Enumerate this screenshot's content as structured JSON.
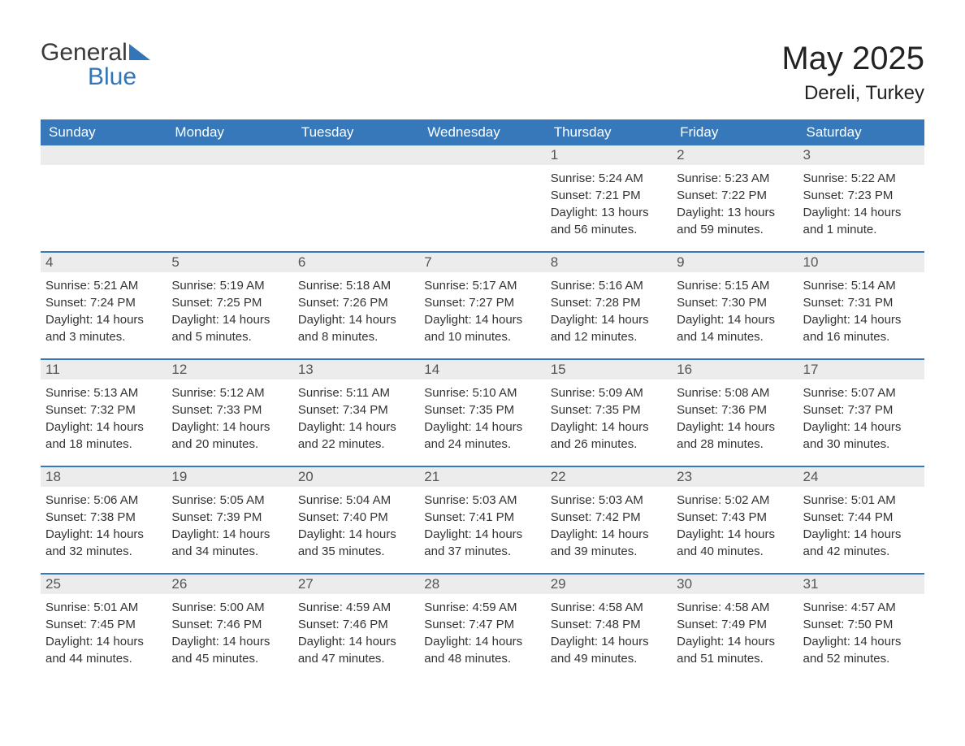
{
  "logo": {
    "text_general": "General",
    "text_blue": "Blue",
    "triangle_color": "#3376b8"
  },
  "header": {
    "month_title": "May 2025",
    "location": "Dereli, Turkey"
  },
  "styling": {
    "header_bg": "#3678b9",
    "header_text": "#ffffff",
    "row_border": "#3678b9",
    "daynum_bg": "#ececec",
    "daynum_text": "#555555",
    "body_text": "#333333",
    "page_bg": "#ffffff",
    "month_title_fontsize": 40,
    "location_fontsize": 24,
    "weekday_fontsize": 17,
    "cell_fontsize": 15
  },
  "labels": {
    "sunrise": "Sunrise:",
    "sunset": "Sunset:",
    "daylight": "Daylight:"
  },
  "weekdays": [
    "Sunday",
    "Monday",
    "Tuesday",
    "Wednesday",
    "Thursday",
    "Friday",
    "Saturday"
  ],
  "weeks": [
    [
      {
        "empty": true
      },
      {
        "empty": true
      },
      {
        "empty": true
      },
      {
        "empty": true
      },
      {
        "day": "1",
        "sunrise": "5:24 AM",
        "sunset": "7:21 PM",
        "daylight": "13 hours and 56 minutes."
      },
      {
        "day": "2",
        "sunrise": "5:23 AM",
        "sunset": "7:22 PM",
        "daylight": "13 hours and 59 minutes."
      },
      {
        "day": "3",
        "sunrise": "5:22 AM",
        "sunset": "7:23 PM",
        "daylight": "14 hours and 1 minute."
      }
    ],
    [
      {
        "day": "4",
        "sunrise": "5:21 AM",
        "sunset": "7:24 PM",
        "daylight": "14 hours and 3 minutes."
      },
      {
        "day": "5",
        "sunrise": "5:19 AM",
        "sunset": "7:25 PM",
        "daylight": "14 hours and 5 minutes."
      },
      {
        "day": "6",
        "sunrise": "5:18 AM",
        "sunset": "7:26 PM",
        "daylight": "14 hours and 8 minutes."
      },
      {
        "day": "7",
        "sunrise": "5:17 AM",
        "sunset": "7:27 PM",
        "daylight": "14 hours and 10 minutes."
      },
      {
        "day": "8",
        "sunrise": "5:16 AM",
        "sunset": "7:28 PM",
        "daylight": "14 hours and 12 minutes."
      },
      {
        "day": "9",
        "sunrise": "5:15 AM",
        "sunset": "7:30 PM",
        "daylight": "14 hours and 14 minutes."
      },
      {
        "day": "10",
        "sunrise": "5:14 AM",
        "sunset": "7:31 PM",
        "daylight": "14 hours and 16 minutes."
      }
    ],
    [
      {
        "day": "11",
        "sunrise": "5:13 AM",
        "sunset": "7:32 PM",
        "daylight": "14 hours and 18 minutes."
      },
      {
        "day": "12",
        "sunrise": "5:12 AM",
        "sunset": "7:33 PM",
        "daylight": "14 hours and 20 minutes."
      },
      {
        "day": "13",
        "sunrise": "5:11 AM",
        "sunset": "7:34 PM",
        "daylight": "14 hours and 22 minutes."
      },
      {
        "day": "14",
        "sunrise": "5:10 AM",
        "sunset": "7:35 PM",
        "daylight": "14 hours and 24 minutes."
      },
      {
        "day": "15",
        "sunrise": "5:09 AM",
        "sunset": "7:35 PM",
        "daylight": "14 hours and 26 minutes."
      },
      {
        "day": "16",
        "sunrise": "5:08 AM",
        "sunset": "7:36 PM",
        "daylight": "14 hours and 28 minutes."
      },
      {
        "day": "17",
        "sunrise": "5:07 AM",
        "sunset": "7:37 PM",
        "daylight": "14 hours and 30 minutes."
      }
    ],
    [
      {
        "day": "18",
        "sunrise": "5:06 AM",
        "sunset": "7:38 PM",
        "daylight": "14 hours and 32 minutes."
      },
      {
        "day": "19",
        "sunrise": "5:05 AM",
        "sunset": "7:39 PM",
        "daylight": "14 hours and 34 minutes."
      },
      {
        "day": "20",
        "sunrise": "5:04 AM",
        "sunset": "7:40 PM",
        "daylight": "14 hours and 35 minutes."
      },
      {
        "day": "21",
        "sunrise": "5:03 AM",
        "sunset": "7:41 PM",
        "daylight": "14 hours and 37 minutes."
      },
      {
        "day": "22",
        "sunrise": "5:03 AM",
        "sunset": "7:42 PM",
        "daylight": "14 hours and 39 minutes."
      },
      {
        "day": "23",
        "sunrise": "5:02 AM",
        "sunset": "7:43 PM",
        "daylight": "14 hours and 40 minutes."
      },
      {
        "day": "24",
        "sunrise": "5:01 AM",
        "sunset": "7:44 PM",
        "daylight": "14 hours and 42 minutes."
      }
    ],
    [
      {
        "day": "25",
        "sunrise": "5:01 AM",
        "sunset": "7:45 PM",
        "daylight": "14 hours and 44 minutes."
      },
      {
        "day": "26",
        "sunrise": "5:00 AM",
        "sunset": "7:46 PM",
        "daylight": "14 hours and 45 minutes."
      },
      {
        "day": "27",
        "sunrise": "4:59 AM",
        "sunset": "7:46 PM",
        "daylight": "14 hours and 47 minutes."
      },
      {
        "day": "28",
        "sunrise": "4:59 AM",
        "sunset": "7:47 PM",
        "daylight": "14 hours and 48 minutes."
      },
      {
        "day": "29",
        "sunrise": "4:58 AM",
        "sunset": "7:48 PM",
        "daylight": "14 hours and 49 minutes."
      },
      {
        "day": "30",
        "sunrise": "4:58 AM",
        "sunset": "7:49 PM",
        "daylight": "14 hours and 51 minutes."
      },
      {
        "day": "31",
        "sunrise": "4:57 AM",
        "sunset": "7:50 PM",
        "daylight": "14 hours and 52 minutes."
      }
    ]
  ]
}
